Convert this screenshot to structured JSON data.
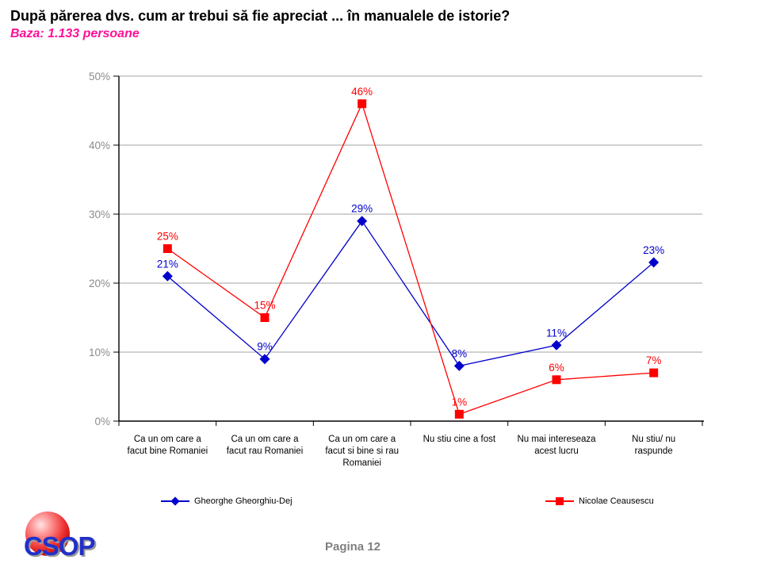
{
  "header": {
    "title": "După părerea dvs. cum ar trebui să fie apreciat ... în manualele de istorie?",
    "subtitle": "Baza: 1.133 persoane",
    "subtitle_color": "#ff0f96"
  },
  "chart_data": {
    "type": "line",
    "title": "",
    "xlabel": "",
    "ylabel": "",
    "ylim": [
      0,
      50
    ],
    "ytick_step": 10,
    "ytick_labels": [
      "0%",
      "10%",
      "20%",
      "30%",
      "40%",
      "50%"
    ],
    "grid": true,
    "grid_color": "#a3a3a3",
    "axis_color": "#000000",
    "axis_tick_label_color": "#8c8c8c",
    "category_label_color": "#000000",
    "data_label_suffix": "%",
    "legend_position": "bottom",
    "categories": [
      "Ca un om care a facut bine Romaniei",
      "Ca un om care a facut rau Romaniei",
      "Ca un om care a facut si bine si rau Romaniei",
      "Nu stiu cine a fost",
      "Nu mai intereseaza acest lucru",
      "Nu stiu/ nu raspunde"
    ],
    "category_lines": [
      [
        "Ca un om care a",
        "facut bine Romaniei"
      ],
      [
        "Ca un om care a",
        "facut rau Romaniei"
      ],
      [
        "Ca un om care a",
        "facut si bine si rau",
        "Romaniei"
      ],
      [
        "Nu stiu cine a fost"
      ],
      [
        "Nu mai intereseaza",
        "acest lucru"
      ],
      [
        "Nu stiu/ nu",
        "raspunde"
      ]
    ],
    "series": [
      {
        "name": "Gheorghe Gheorghiu-Dej",
        "color": "#0000cc",
        "marker": "diamond",
        "values": [
          21,
          9,
          29,
          8,
          11,
          23
        ]
      },
      {
        "name": "Nicolae Ceausescu",
        "color": "#ff0000",
        "marker": "square",
        "values": [
          25,
          15,
          46,
          1,
          6,
          7
        ]
      }
    ]
  },
  "footer": {
    "logo_text": "CSOP",
    "page_label": "Pagina 12"
  }
}
